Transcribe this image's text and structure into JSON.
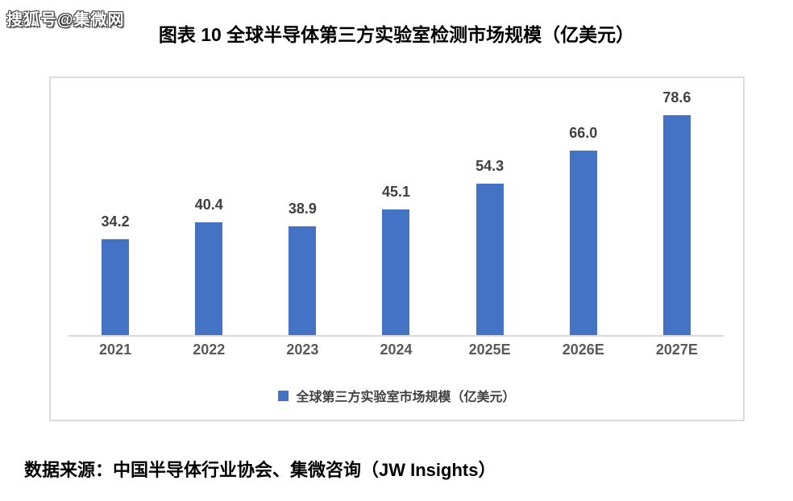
{
  "watermark": "搜狐号@集微网",
  "header": {
    "title": "图表 10 全球半导体第三方实验室检测市场规模（亿美元）"
  },
  "legend": {
    "label": "全球第三方实验室市场规模（亿美元）",
    "marker_color": "#4472C4"
  },
  "footer": {
    "source": "数据来源：中国半导体行业协会、集微咨询（JW Insights）"
  },
  "colors": {
    "bar": "#4472C4",
    "axis_line": "#D9D9D9",
    "frame_border": "#DBDBDB",
    "value_label": "#404040",
    "x_label": "#595959"
  },
  "chart_data": {
    "type": "bar",
    "title": "图表 10 全球半导体第三方实验室检测市场规模（亿美元）",
    "categories": [
      "2021",
      "2022",
      "2023",
      "2024",
      "2025E",
      "2026E",
      "2027E"
    ],
    "values": [
      34.2,
      40.4,
      38.9,
      45.1,
      54.3,
      66.0,
      78.6
    ],
    "data_labels": [
      "34.2",
      "40.4",
      "38.9",
      "45.1",
      "54.3",
      "66.0",
      "78.6"
    ],
    "series_name": "全球第三方实验室市场规模（亿美元）",
    "xlabel": "",
    "ylabel": "",
    "ylim": [
      0,
      92
    ],
    "grid": false,
    "y_axis_visible": false,
    "legend_position": "bottom"
  }
}
